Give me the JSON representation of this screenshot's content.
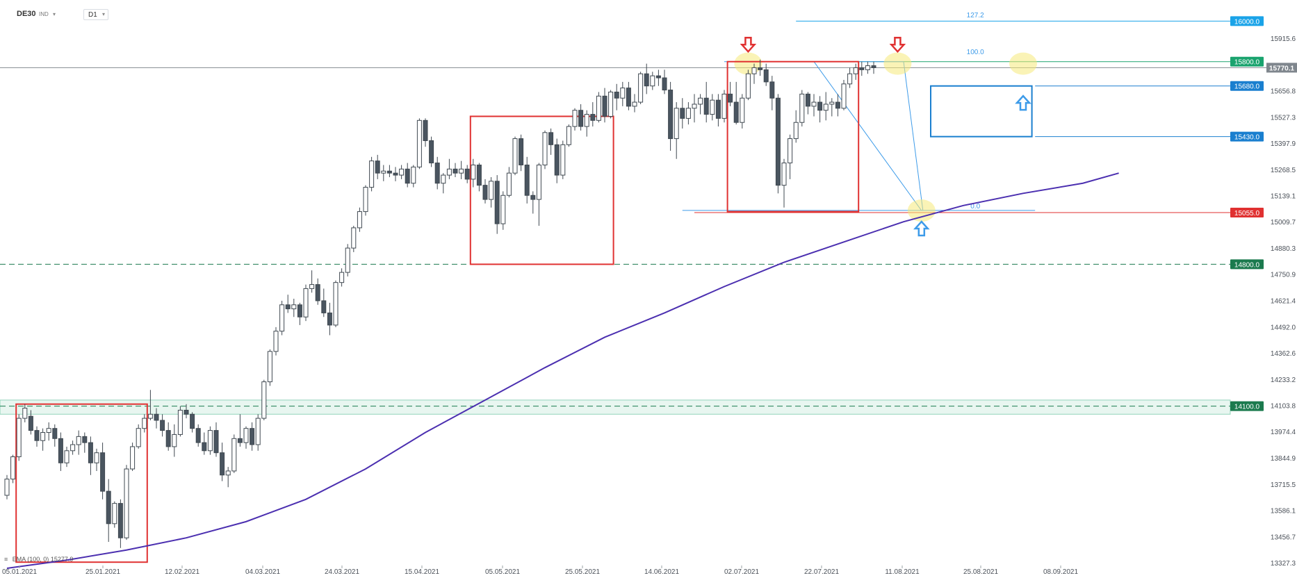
{
  "header": {
    "symbol": "DE30",
    "instrument_type": "IND",
    "interval": "D1"
  },
  "indicator": {
    "label": "EMA (100, 0)",
    "value": "15277.9",
    "color": "#4b2fb0"
  },
  "colors": {
    "bull_fill": "#ffffff",
    "bear_fill": "#4a5560",
    "candle_outline": "#3f4850",
    "red_box": "#e03131",
    "blue_box": "#1a7fcf",
    "green_level": "#1aa36e",
    "dark_green_level": "#1b7a4e",
    "fib_line": "#3d9be9",
    "highlight": "#f5e97a",
    "current_price": "#7f868d"
  },
  "chart_data": {
    "type": "candlestick",
    "title": "",
    "y_axis_ticks": [
      "15915.6",
      "15656.8",
      "15527.3",
      "15397.9",
      "15268.5",
      "15139.1",
      "15009.7",
      "14880.3",
      "14750.9",
      "14621.4",
      "14492.0",
      "14362.6",
      "14233.2",
      "14103.8",
      "13974.4",
      "13844.9",
      "13715.5",
      "13586.1",
      "13456.7",
      "13327.3"
    ],
    "x_axis_ticks": [
      "05.01.2021",
      "25.01.2021",
      "12.02.2021",
      "04.03.2021",
      "24.03.2021",
      "15.04.2021",
      "05.05.2021",
      "25.05.2021",
      "14.06.2021",
      "02.07.2021",
      "22.07.2021",
      "11.08.2021",
      "25.08.2021",
      "08.09.2021"
    ],
    "ylim": [
      13327.3,
      16060
    ],
    "current_price": "15770.1",
    "levels": [
      {
        "label": "16000.0",
        "value": 16000,
        "color": "#1aa3e8",
        "style": "solid"
      },
      {
        "label": "15800.0",
        "value": 15800,
        "color": "#1aa36e",
        "style": "solid"
      },
      {
        "label": "15680.0",
        "value": 15680,
        "color": "#1a7fcf",
        "style": "solid"
      },
      {
        "label": "15430.0",
        "value": 15430,
        "color": "#1a7fcf",
        "style": "solid"
      },
      {
        "label": "15055.0",
        "value": 15055,
        "color": "#e03131",
        "style": "solid"
      },
      {
        "label": "14800.0",
        "value": 14800,
        "color": "#1b7a4e",
        "style": "dashed"
      },
      {
        "label": "14100.0",
        "value": 14100,
        "color": "#1b7a4e",
        "style": "dashed"
      }
    ],
    "fib_labels": [
      {
        "label": "127.2",
        "value": 16009
      },
      {
        "label": "100.0",
        "value": 15826
      },
      {
        "label": "0.0",
        "value": 15066
      }
    ],
    "candles": [
      [
        13660,
        13760,
        13640,
        13740
      ],
      [
        13740,
        13860,
        13720,
        13850
      ],
      [
        13850,
        14060,
        13830,
        14040
      ],
      [
        14040,
        14110,
        14020,
        14090
      ],
      [
        14050,
        14080,
        13960,
        13980
      ],
      [
        13980,
        14000,
        13900,
        13930
      ],
      [
        13930,
        13990,
        13880,
        13970
      ],
      [
        13970,
        14020,
        13930,
        13990
      ],
      [
        13990,
        14010,
        13900,
        13940
      ],
      [
        13940,
        13970,
        13780,
        13820
      ],
      [
        13820,
        13900,
        13800,
        13880
      ],
      [
        13880,
        13930,
        13860,
        13910
      ],
      [
        13910,
        13980,
        13860,
        13950
      ],
      [
        13950,
        13970,
        13870,
        13920
      ],
      [
        13920,
        13950,
        13760,
        13820
      ],
      [
        13820,
        13890,
        13780,
        13870
      ],
      [
        13870,
        13920,
        13640,
        13680
      ],
      [
        13680,
        13740,
        13430,
        13520
      ],
      [
        13520,
        13630,
        13500,
        13620
      ],
      [
        13620,
        13640,
        13400,
        13450
      ],
      [
        13450,
        13810,
        13440,
        13790
      ],
      [
        13790,
        13920,
        13780,
        13900
      ],
      [
        13900,
        14010,
        13890,
        13990
      ],
      [
        13990,
        14060,
        13970,
        14040
      ],
      [
        14040,
        14180,
        14030,
        14060
      ],
      [
        14060,
        14090,
        13990,
        14030
      ],
      [
        14030,
        14060,
        13950,
        13980
      ],
      [
        13980,
        14020,
        13880,
        13900
      ],
      [
        13900,
        14010,
        13850,
        13960
      ],
      [
        13960,
        14100,
        13950,
        14080
      ],
      [
        14080,
        14110,
        14040,
        14060
      ],
      [
        14060,
        14070,
        13970,
        13990
      ],
      [
        13990,
        14010,
        13900,
        13920
      ],
      [
        13920,
        13970,
        13860,
        13880
      ],
      [
        13880,
        14000,
        13860,
        13980
      ],
      [
        13980,
        14020,
        13850,
        13870
      ],
      [
        13870,
        13920,
        13730,
        13760
      ],
      [
        13760,
        13800,
        13700,
        13780
      ],
      [
        13780,
        13960,
        13770,
        13940
      ],
      [
        13940,
        14060,
        13900,
        13920
      ],
      [
        13920,
        14000,
        13890,
        13990
      ],
      [
        13990,
        14020,
        13880,
        13910
      ],
      [
        13910,
        14060,
        13880,
        14040
      ],
      [
        14040,
        14230,
        14030,
        14220
      ],
      [
        14220,
        14380,
        14200,
        14370
      ],
      [
        14370,
        14490,
        14350,
        14470
      ],
      [
        14470,
        14620,
        14450,
        14600
      ],
      [
        14600,
        14650,
        14560,
        14580
      ],
      [
        14580,
        14630,
        14540,
        14600
      ],
      [
        14600,
        14610,
        14500,
        14540
      ],
      [
        14540,
        14700,
        14520,
        14680
      ],
      [
        14680,
        14770,
        14660,
        14700
      ],
      [
        14700,
        14730,
        14600,
        14620
      ],
      [
        14620,
        14680,
        14540,
        14560
      ],
      [
        14560,
        14610,
        14450,
        14500
      ],
      [
        14500,
        14720,
        14490,
        14710
      ],
      [
        14710,
        14780,
        14690,
        14760
      ],
      [
        14760,
        14900,
        14740,
        14880
      ],
      [
        14880,
        14990,
        14860,
        14980
      ],
      [
        14980,
        15080,
        14960,
        15060
      ],
      [
        15060,
        15190,
        15040,
        15180
      ],
      [
        15180,
        15330,
        15160,
        15310
      ],
      [
        15310,
        15340,
        15220,
        15250
      ],
      [
        15250,
        15290,
        15210,
        15260
      ],
      [
        15260,
        15290,
        15230,
        15250
      ],
      [
        15250,
        15280,
        15210,
        15240
      ],
      [
        15240,
        15290,
        15220,
        15270
      ],
      [
        15270,
        15300,
        15180,
        15200
      ],
      [
        15200,
        15290,
        15180,
        15280
      ],
      [
        15280,
        15520,
        15270,
        15510
      ],
      [
        15510,
        15520,
        15380,
        15410
      ],
      [
        15410,
        15430,
        15280,
        15300
      ],
      [
        15300,
        15330,
        15170,
        15200
      ],
      [
        15200,
        15250,
        15150,
        15240
      ],
      [
        15240,
        15320,
        15220,
        15270
      ],
      [
        15270,
        15300,
        15230,
        15250
      ],
      [
        15250,
        15310,
        15220,
        15270
      ],
      [
        15270,
        15290,
        15200,
        15220
      ],
      [
        15220,
        15320,
        15180,
        15290
      ],
      [
        15290,
        15300,
        15160,
        15190
      ],
      [
        15190,
        15220,
        15100,
        15120
      ],
      [
        15120,
        15230,
        15080,
        15210
      ],
      [
        15210,
        15240,
        14950,
        15000
      ],
      [
        15000,
        15160,
        14970,
        15140
      ],
      [
        15140,
        15280,
        15130,
        15250
      ],
      [
        15250,
        15430,
        15240,
        15420
      ],
      [
        15420,
        15440,
        15260,
        15290
      ],
      [
        15290,
        15330,
        15100,
        15140
      ],
      [
        15140,
        15160,
        15050,
        15120
      ],
      [
        15120,
        15300,
        14990,
        15290
      ],
      [
        15290,
        15460,
        15270,
        15450
      ],
      [
        15450,
        15470,
        15340,
        15390
      ],
      [
        15390,
        15420,
        15200,
        15240
      ],
      [
        15240,
        15410,
        15220,
        15390
      ],
      [
        15390,
        15490,
        15380,
        15480
      ],
      [
        15480,
        15570,
        15460,
        15560
      ],
      [
        15560,
        15590,
        15460,
        15480
      ],
      [
        15480,
        15560,
        15430,
        15540
      ],
      [
        15540,
        15600,
        15480,
        15510
      ],
      [
        15510,
        15650,
        15500,
        15630
      ],
      [
        15630,
        15670,
        15500,
        15530
      ],
      [
        15530,
        15660,
        15520,
        15650
      ],
      [
        15650,
        15690,
        15560,
        15620
      ],
      [
        15620,
        15700,
        15580,
        15670
      ],
      [
        15670,
        15700,
        15560,
        15580
      ],
      [
        15580,
        15640,
        15550,
        15600
      ],
      [
        15600,
        15750,
        15590,
        15740
      ],
      [
        15740,
        15790,
        15640,
        15680
      ],
      [
        15680,
        15750,
        15660,
        15730
      ],
      [
        15730,
        15760,
        15680,
        15720
      ],
      [
        15720,
        15760,
        15640,
        15660
      ],
      [
        15660,
        15700,
        15360,
        15420
      ],
      [
        15420,
        15600,
        15320,
        15570
      ],
      [
        15570,
        15620,
        15470,
        15520
      ],
      [
        15520,
        15600,
        15490,
        15570
      ],
      [
        15570,
        15640,
        15500,
        15590
      ],
      [
        15590,
        15640,
        15540,
        15620
      ],
      [
        15620,
        15700,
        15500,
        15540
      ],
      [
        15540,
        15640,
        15510,
        15610
      ],
      [
        15610,
        15640,
        15480,
        15520
      ],
      [
        15520,
        15660,
        15500,
        15640
      ],
      [
        15640,
        15700,
        15580,
        15600
      ],
      [
        15600,
        15700,
        15490,
        15500
      ],
      [
        15500,
        15640,
        15470,
        15620
      ],
      [
        15620,
        15760,
        15610,
        15740
      ],
      [
        15740,
        15790,
        15690,
        15770
      ],
      [
        15770,
        15810,
        15730,
        15760
      ],
      [
        15760,
        15790,
        15680,
        15700
      ],
      [
        15700,
        15730,
        15560,
        15620
      ],
      [
        15620,
        15640,
        15150,
        15190
      ],
      [
        15190,
        15320,
        15080,
        15300
      ],
      [
        15300,
        15440,
        15220,
        15420
      ],
      [
        15420,
        15560,
        15400,
        15500
      ],
      [
        15500,
        15660,
        15480,
        15640
      ],
      [
        15640,
        15650,
        15540,
        15580
      ],
      [
        15580,
        15640,
        15530,
        15600
      ],
      [
        15600,
        15630,
        15500,
        15560
      ],
      [
        15560,
        15650,
        15510,
        15590
      ],
      [
        15590,
        15620,
        15530,
        15600
      ],
      [
        15600,
        15640,
        15530,
        15570
      ],
      [
        15570,
        15710,
        15560,
        15690
      ],
      [
        15690,
        15770,
        15670,
        15740
      ],
      [
        15740,
        15790,
        15710,
        15770
      ],
      [
        15770,
        15800,
        15730,
        15760
      ],
      [
        15760,
        15800,
        15740,
        15780
      ],
      [
        15780,
        15800,
        15740,
        15770
      ]
    ],
    "ema_label": "EMA (100, 0)",
    "ema_value": 15277.9,
    "ema_points": [
      [
        0,
        13300
      ],
      [
        10,
        13340
      ],
      [
        20,
        13390
      ],
      [
        30,
        13450
      ],
      [
        40,
        13530
      ],
      [
        50,
        13640
      ],
      [
        60,
        13790
      ],
      [
        70,
        13970
      ],
      [
        80,
        14130
      ],
      [
        90,
        14290
      ],
      [
        100,
        14440
      ],
      [
        110,
        14560
      ],
      [
        120,
        14690
      ],
      [
        130,
        14810
      ],
      [
        140,
        14910
      ],
      [
        150,
        15010
      ],
      [
        160,
        15090
      ],
      [
        170,
        15150
      ],
      [
        180,
        15200
      ],
      [
        186,
        15250
      ]
    ],
    "rectangles": [
      {
        "from_index": 2,
        "to_index": 23,
        "top": 14110,
        "bottom": 13330,
        "color": "#e03131"
      },
      {
        "from_index": 78,
        "to_index": 101,
        "top": 15530,
        "bottom": 14800,
        "color": "#e03131"
      },
      {
        "from_index": 121,
        "to_index": 142,
        "top": 15800,
        "bottom": 15060,
        "color": "#e03131"
      },
      {
        "from_index": 155,
        "to_index": 171,
        "top": 15680,
        "bottom": 15430,
        "color": "#1a7fcf"
      }
    ],
    "arrows": [
      {
        "index": 124,
        "value": 15870,
        "direction": "down",
        "color": "#e03131"
      },
      {
        "index": 149,
        "value": 15870,
        "direction": "down",
        "color": "#e03131"
      },
      {
        "index": 153,
        "value": 14990,
        "direction": "up",
        "color": "#3d9be9"
      },
      {
        "index": 170,
        "value": 15610,
        "direction": "up",
        "color": "#3d9be9"
      }
    ],
    "highlights": [
      {
        "index": 124,
        "value": 15790
      },
      {
        "index": 149,
        "value": 15790
      },
      {
        "index": 153,
        "value": 15065
      },
      {
        "index": 170,
        "value": 15790
      }
    ],
    "grid": false,
    "legend": "bottom-left"
  }
}
